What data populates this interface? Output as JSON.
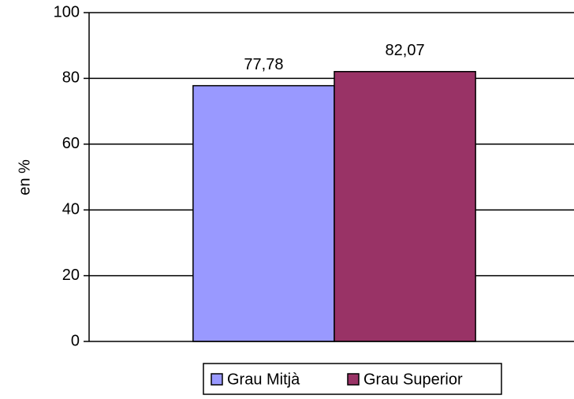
{
  "chart_data": {
    "type": "bar",
    "y_label": "en %",
    "categories": [
      null
    ],
    "series": [
      {
        "name": "Grau Mitjà",
        "color": "#9999ff",
        "values": [
          77.78
        ],
        "value_labels": [
          "77,78"
        ]
      },
      {
        "name": "Grau Superior",
        "color": "#993366",
        "values": [
          82.07
        ],
        "value_labels": [
          "82,07"
        ]
      }
    ],
    "ylim": [
      0,
      100
    ],
    "yticks": [
      0,
      20,
      40,
      60,
      80,
      100
    ],
    "grid": true,
    "legend": "bottom"
  }
}
